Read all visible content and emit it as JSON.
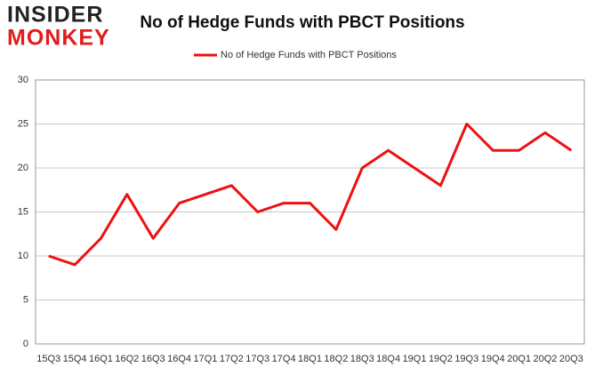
{
  "logo": [
    "INSIDER",
    "MONKEY"
  ],
  "chart_data": {
    "type": "line",
    "title": "No of Hedge Funds with PBCT Positions",
    "categories": [
      "15Q3",
      "15Q4",
      "16Q1",
      "16Q2",
      "16Q3",
      "16Q4",
      "17Q1",
      "17Q2",
      "17Q3",
      "17Q4",
      "18Q1",
      "18Q2",
      "18Q3",
      "18Q4",
      "19Q1",
      "19Q2",
      "19Q3",
      "19Q4",
      "20Q1",
      "20Q2",
      "20Q3"
    ],
    "series": [
      {
        "name": "No of Hedge Funds with PBCT Positions",
        "color": "#ee1111",
        "values": [
          10,
          9,
          12,
          17,
          12,
          16,
          17,
          18,
          15,
          16,
          16,
          13,
          20,
          22,
          20,
          18,
          25,
          22,
          22,
          24,
          22
        ]
      }
    ],
    "ylim": [
      0,
      30
    ],
    "yticks": [
      0,
      5,
      10,
      15,
      20,
      25,
      30
    ],
    "grid": true,
    "legend": "top"
  }
}
